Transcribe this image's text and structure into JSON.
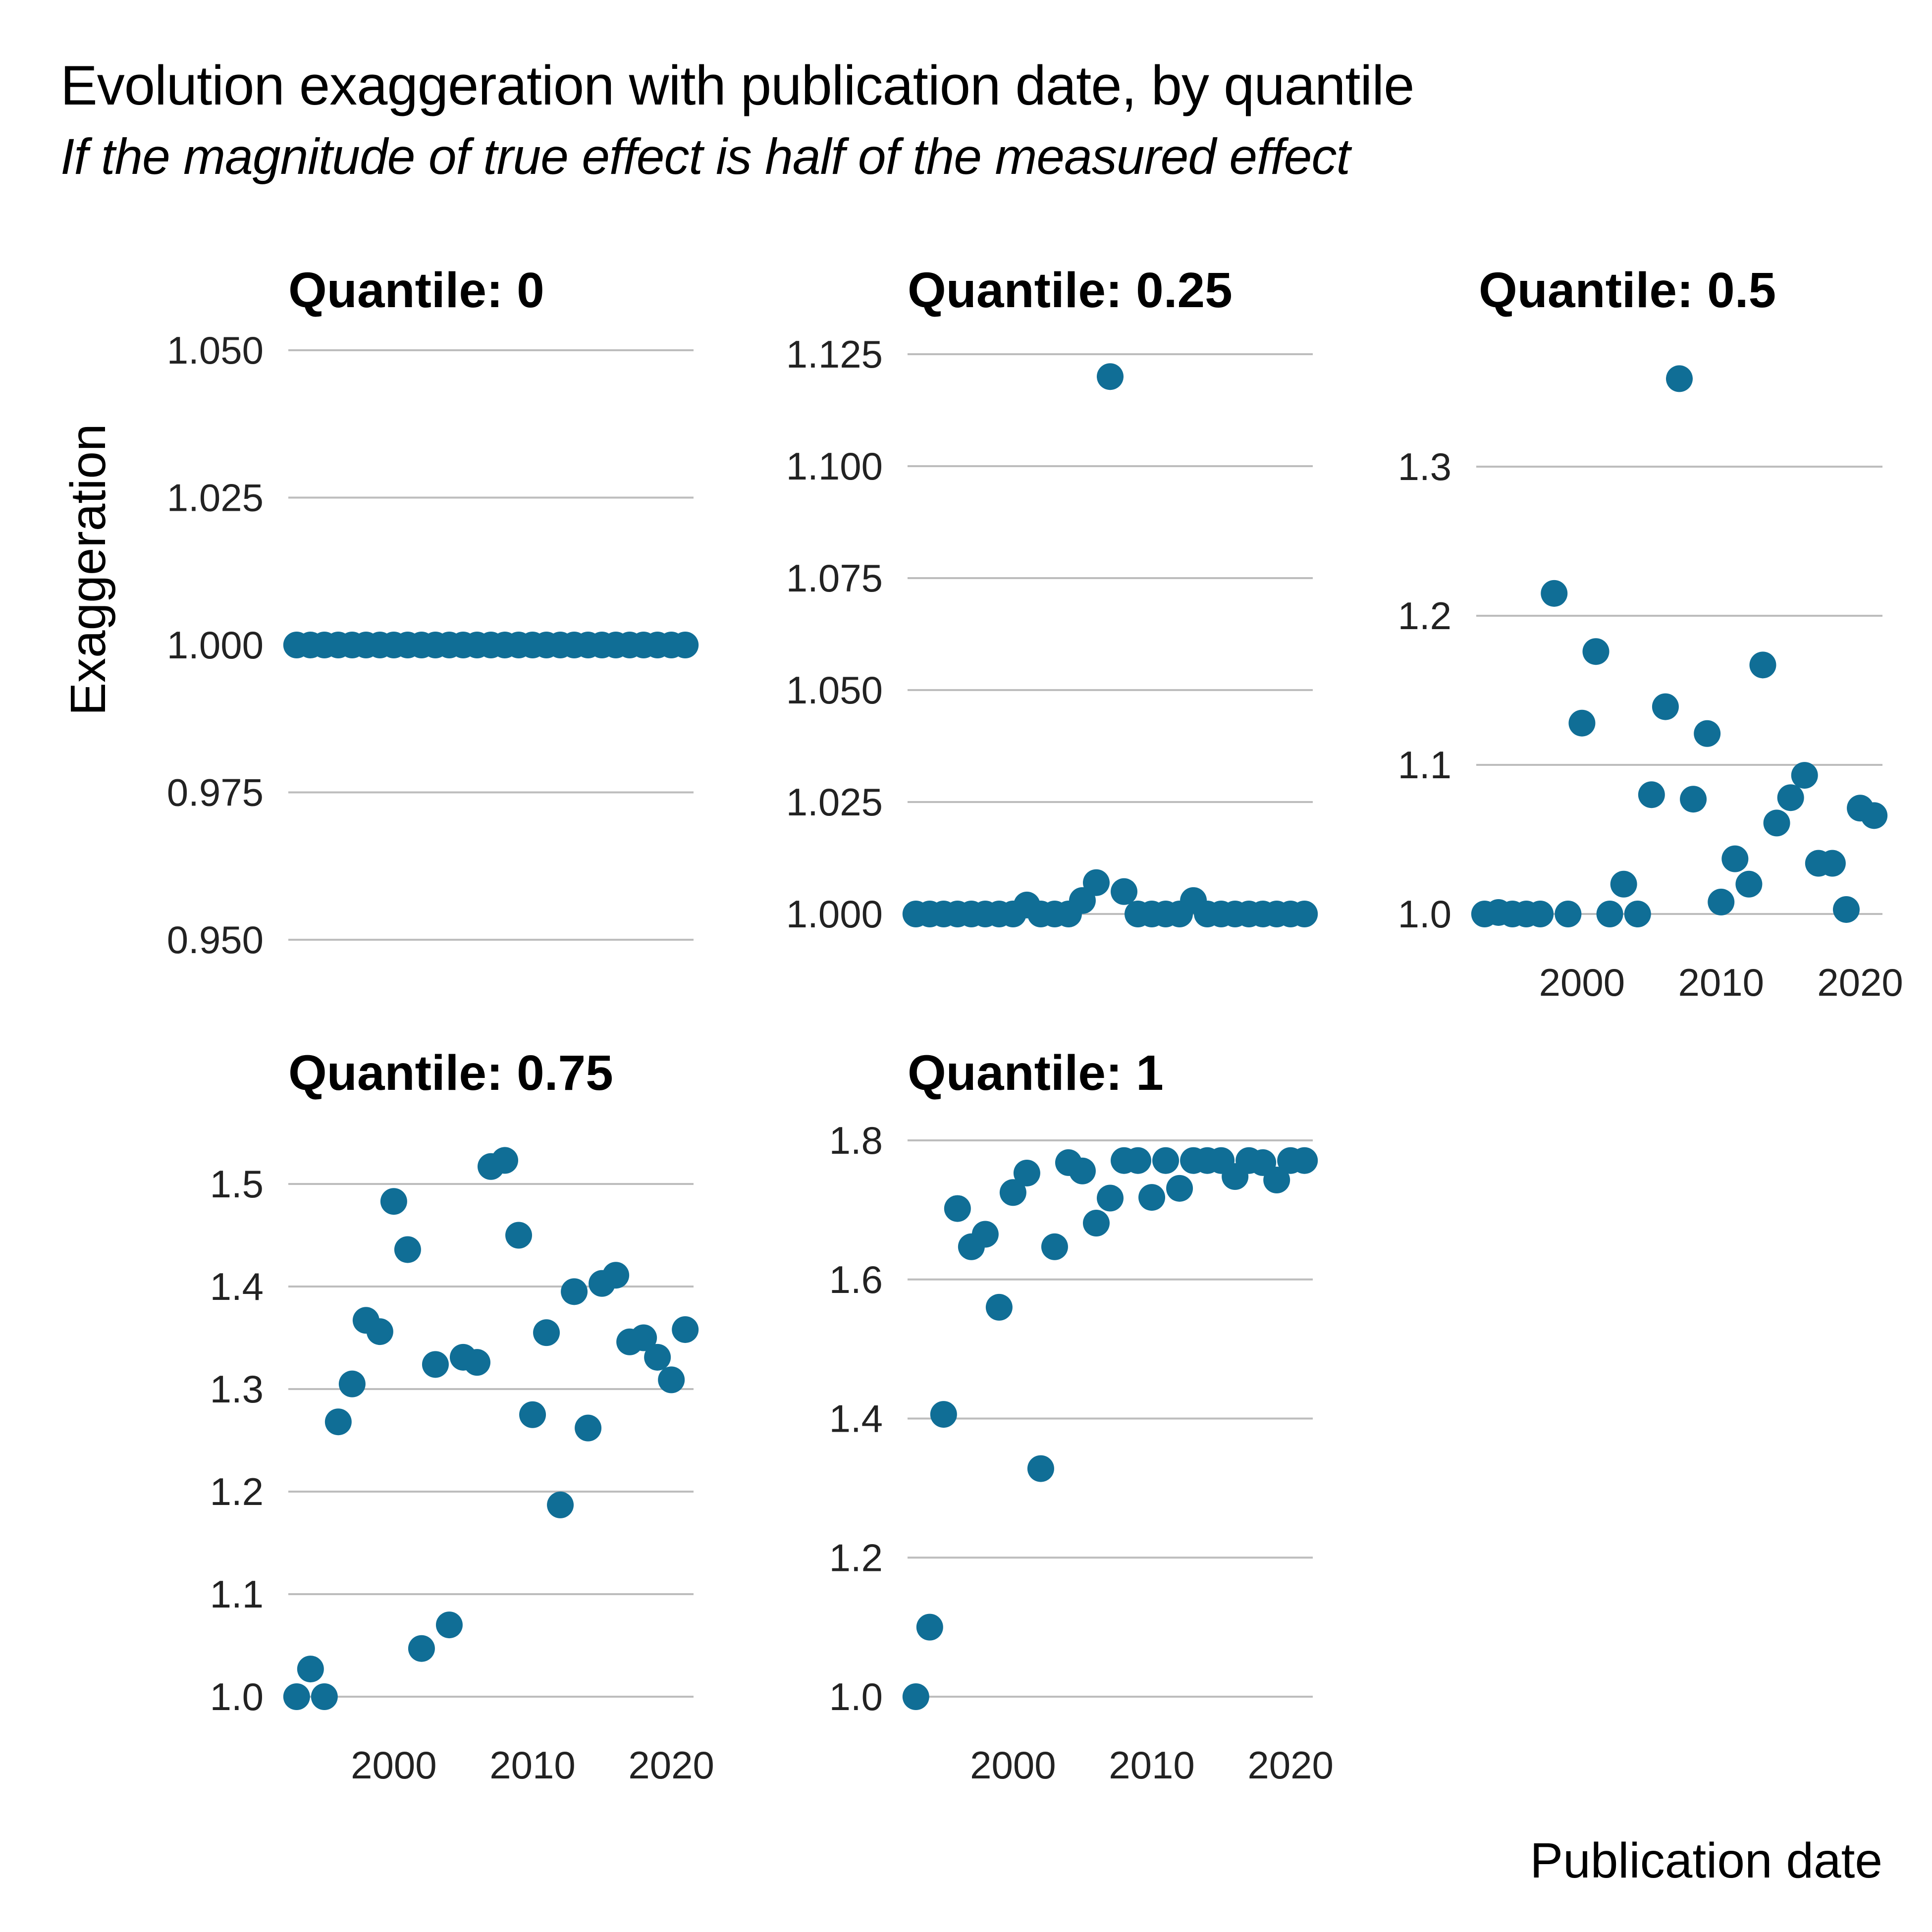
{
  "title": "Evolution exaggeration with publication date, by quantile",
  "subtitle": "If the magnitude of true effect is half of the measured effect",
  "colors": {
    "point": "#106e96",
    "grid": "#bdbdbd",
    "text": "#000000"
  },
  "chart_data": {
    "type": "scatter",
    "title": "Evolution exaggeration with publication date, by quantile",
    "subtitle": "If the magnitude of true effect is half of the measured effect",
    "xlabel": "Publication date",
    "ylabel": "Exaggeration",
    "x": [
      1993,
      1994,
      1995,
      1996,
      1997,
      1998,
      1999,
      2000,
      2001,
      2002,
      2003,
      2004,
      2005,
      2006,
      2007,
      2008,
      2009,
      2010,
      2011,
      2012,
      2013,
      2014,
      2015,
      2016,
      2017,
      2018,
      2019,
      2020,
      2021
    ],
    "xlim": [
      1992.4,
      2021.6
    ],
    "x_ticks": [
      2000,
      2010,
      2020
    ],
    "x_tick_labels": [
      "2000",
      "2010",
      "2020"
    ],
    "grid": "horizontal major",
    "legend": "none",
    "facets": [
      {
        "title": "Quantile: 0",
        "ylim": [
          0.945,
          1.053
        ],
        "y_ticks": [
          0.95,
          0.975,
          1.0,
          1.025,
          1.05
        ],
        "y_tick_labels": [
          "0.950",
          "0.975",
          "1.000",
          "1.025",
          "1.050"
        ],
        "values": [
          1,
          1,
          1,
          1,
          1,
          1,
          1,
          1,
          1,
          1,
          1,
          1,
          1,
          1,
          1,
          1,
          1,
          1,
          1,
          1,
          1,
          1,
          1,
          1,
          1,
          1,
          1,
          1,
          1
        ]
      },
      {
        "title": "Quantile: 0.25",
        "ylim": [
          0.99,
          1.128
        ],
        "y_ticks": [
          1.0,
          1.025,
          1.05,
          1.075,
          1.1,
          1.125
        ],
        "y_tick_labels": [
          "1.000",
          "1.025",
          "1.050",
          "1.075",
          "1.100",
          "1.125"
        ],
        "values": [
          1,
          1,
          1,
          1,
          1,
          1,
          1,
          1,
          1.002,
          1,
          1,
          1,
          1.003,
          1.007,
          1.12,
          1.005,
          1,
          1,
          1,
          1,
          1.003,
          1,
          1,
          1,
          1,
          1,
          1,
          1,
          1
        ]
      },
      {
        "title": "Quantile: 0.5",
        "ylim": [
          0.985,
          1.375
        ],
        "y_ticks": [
          1.0,
          1.1,
          1.2,
          1.3
        ],
        "y_tick_labels": [
          "1.0",
          "1.1",
          "1.2",
          "1.3"
        ],
        "show_x_axis": true,
        "values": [
          1,
          1.001,
          1,
          1,
          1,
          1.215,
          1,
          1.128,
          1.176,
          1,
          1.02,
          1,
          1.08,
          1.139,
          1.359,
          1.077,
          1.121,
          1.008,
          1.037,
          1.02,
          1.167,
          1.061,
          1.078,
          1.093,
          1.034,
          1.034,
          1.003,
          1.071,
          1.066
        ]
      },
      {
        "title": "Quantile: 0.75",
        "ylim": [
          0.985,
          1.54
        ],
        "y_ticks": [
          1.0,
          1.1,
          1.2,
          1.3,
          1.4,
          1.5
        ],
        "y_tick_labels": [
          "1.0",
          "1.1",
          "1.2",
          "1.3",
          "1.4",
          "1.5"
        ],
        "show_x_axis": true,
        "values": [
          1,
          1.027,
          1,
          1.268,
          1.305,
          1.367,
          1.356,
          1.483,
          1.436,
          1.047,
          1.324,
          1.07,
          1.331,
          1.326,
          1.517,
          1.523,
          1.45,
          1.275,
          1.355,
          1.187,
          1.395,
          1.262,
          1.403,
          1.411,
          1.346,
          1.35,
          1.331,
          1.309,
          1.358
        ]
      },
      {
        "title": "Quantile: 1",
        "ylim": [
          0.97,
          1.82
        ],
        "y_ticks": [
          1.0,
          1.2,
          1.4,
          1.6,
          1.8
        ],
        "y_tick_labels": [
          "1.0",
          "1.2",
          "1.4",
          "1.6",
          "1.8"
        ],
        "show_x_axis": true,
        "values": [
          1,
          1.1,
          1.406,
          1.702,
          1.647,
          1.665,
          1.56,
          1.725,
          1.753,
          1.328,
          1.647,
          1.768,
          1.756,
          1.681,
          1.717,
          1.771,
          1.771,
          1.718,
          1.771,
          1.731,
          1.771,
          1.771,
          1.771,
          1.748,
          1.771,
          1.768,
          1.743,
          1.771,
          1.771
        ]
      }
    ]
  }
}
